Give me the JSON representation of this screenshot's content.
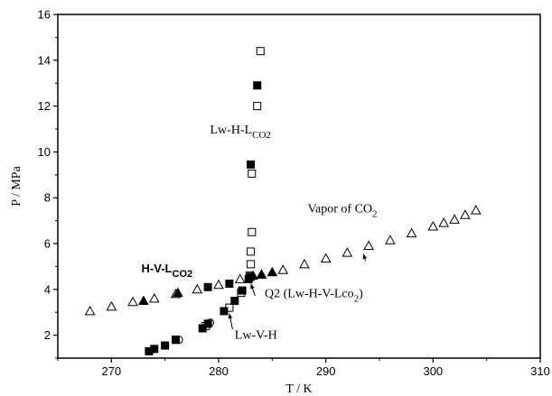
{
  "chart_data": {
    "type": "scatter",
    "title": "",
    "xlabel": "T / K",
    "ylabel": "P / MPa",
    "xlim": [
      265,
      310
    ],
    "ylim": [
      1,
      16
    ],
    "xticks": [
      270,
      280,
      290,
      300,
      310
    ],
    "yticks": [
      2,
      4,
      6,
      8,
      10,
      12,
      14,
      16
    ],
    "grid": false,
    "series": [
      {
        "marker": "open-triangle",
        "points": [
          [
            268,
            3.05
          ],
          [
            270,
            3.25
          ],
          [
            272,
            3.45
          ],
          [
            274,
            3.6
          ],
          [
            276,
            3.8
          ],
          [
            278,
            4.0
          ],
          [
            280,
            4.2
          ],
          [
            282,
            4.45
          ],
          [
            284,
            4.65
          ],
          [
            286,
            4.85
          ],
          [
            288,
            5.1
          ],
          [
            290,
            5.35
          ],
          [
            292,
            5.6
          ],
          [
            294,
            5.9
          ],
          [
            296,
            6.15
          ],
          [
            298,
            6.45
          ],
          [
            300,
            6.75
          ],
          [
            301,
            6.9
          ],
          [
            302,
            7.05
          ],
          [
            303,
            7.25
          ],
          [
            304,
            7.45
          ]
        ]
      },
      {
        "marker": "filled-triangle",
        "points": [
          [
            273,
            3.5
          ],
          [
            276.2,
            3.85
          ],
          [
            283.2,
            4.6
          ],
          [
            284,
            4.65
          ],
          [
            285,
            4.75
          ]
        ]
      },
      {
        "marker": "filled-square",
        "points": [
          [
            273.5,
            1.3
          ],
          [
            274,
            1.4
          ],
          [
            275,
            1.55
          ],
          [
            276,
            1.8
          ],
          [
            278.5,
            2.3
          ],
          [
            279,
            2.5
          ],
          [
            280.5,
            3.05
          ],
          [
            281.5,
            3.5
          ],
          [
            282.2,
            3.95
          ],
          [
            282.8,
            4.45
          ],
          [
            283,
            4.55
          ],
          [
            279,
            4.1
          ],
          [
            281,
            4.25
          ],
          [
            283,
            9.45
          ],
          [
            283.6,
            12.9
          ]
        ]
      },
      {
        "marker": "open-square",
        "points": [
          [
            276,
            1.8
          ],
          [
            278.8,
            2.4
          ],
          [
            281,
            3.2
          ],
          [
            282.1,
            3.85
          ],
          [
            282.9,
            4.6
          ],
          [
            283,
            5.1
          ],
          [
            283,
            5.65
          ],
          [
            283.1,
            6.5
          ],
          [
            283.1,
            9.05
          ],
          [
            283.6,
            12.0
          ],
          [
            283.9,
            14.4
          ]
        ]
      },
      {
        "marker": "open-circle",
        "points": [
          [
            274,
            1.4
          ],
          [
            276.3,
            1.8
          ],
          [
            279.2,
            2.55
          ],
          [
            281,
            3.2
          ],
          [
            282.2,
            3.9
          ]
        ]
      }
    ],
    "annotations": [
      {
        "text_main": "Lw-H-L",
        "text_sub": "CO2",
        "x": 279.2,
        "y": 10.8
      },
      {
        "text_main": "Vapor of CO",
        "text_sub": "2",
        "x": 288.3,
        "y": 7.35
      },
      {
        "text_main": "H-V-L",
        "text_sub": "CO2",
        "x": 272.8,
        "y": 4.75
      },
      {
        "text_main": "Q2  (Lw-H-V-Lco",
        "text_sub": "2",
        "text_after": ")",
        "x": 284.3,
        "y": 3.65
      },
      {
        "text_main": "Lw-V-H",
        "text_sub": "",
        "x": 281.5,
        "y": 1.85
      }
    ]
  }
}
